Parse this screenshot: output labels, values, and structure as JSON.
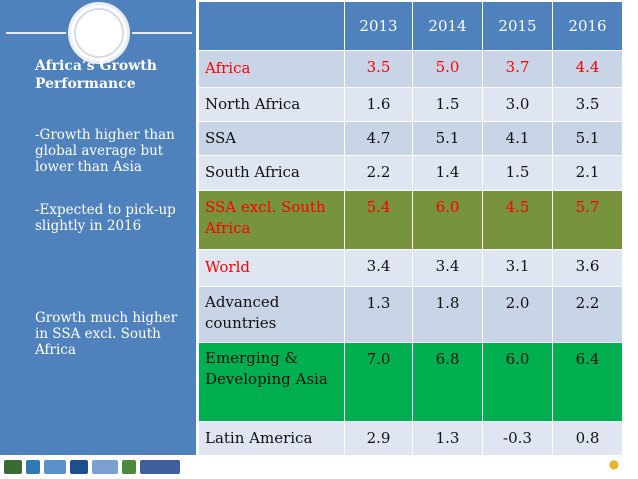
{
  "sidebar": {
    "title": "Africa’s Growth Performance",
    "point1": "-Growth higher than global average but lower than Asia",
    "point2": "-Expected to pick-up slightly in 2016",
    "point3": "Growth much higher in SSA excl. South Africa"
  },
  "table": {
    "years": [
      "2013",
      "2014",
      "2015",
      "2016"
    ],
    "rows": [
      {
        "label": "Africa",
        "values": [
          "3.5",
          "5.0",
          "3.7",
          "4.4"
        ]
      },
      {
        "label": "North Africa",
        "values": [
          "1.6",
          "1.5",
          "3.0",
          "3.5"
        ]
      },
      {
        "label": "SSA",
        "values": [
          "4.7",
          "5.1",
          "4.1",
          "5.1"
        ]
      },
      {
        "label": "South Africa",
        "values": [
          "2.2",
          "1.4",
          "1.5",
          "2.1"
        ]
      },
      {
        "label": "SSA excl. South Africa",
        "values": [
          "5.4",
          "6.0",
          "4.5",
          "5.7"
        ]
      },
      {
        "label": "World",
        "values": [
          "3.4",
          "3.4",
          "3.1",
          "3.6"
        ]
      },
      {
        "label": "Advanced countries",
        "values": [
          "1.3",
          "1.8",
          "2.0",
          "2.2"
        ]
      },
      {
        "label": "Emerging & Developing Asia",
        "values": [
          "7.0",
          "6.8",
          "6.0",
          "6.4"
        ]
      },
      {
        "label": "Latin America",
        "values": [
          "2.9",
          "1.3",
          "-0.3",
          "0.8"
        ]
      }
    ]
  },
  "colors": {
    "header_blue": "#4f81bd",
    "row_light": "#dfe6f1",
    "row_mid": "#c9d4e6",
    "row_olive": "#77933c",
    "row_green": "#00b050",
    "highlight_red": "#ff0000"
  },
  "icons": {
    "decor": "circle-ornament-icon",
    "badge": "corner-badge-icon"
  }
}
